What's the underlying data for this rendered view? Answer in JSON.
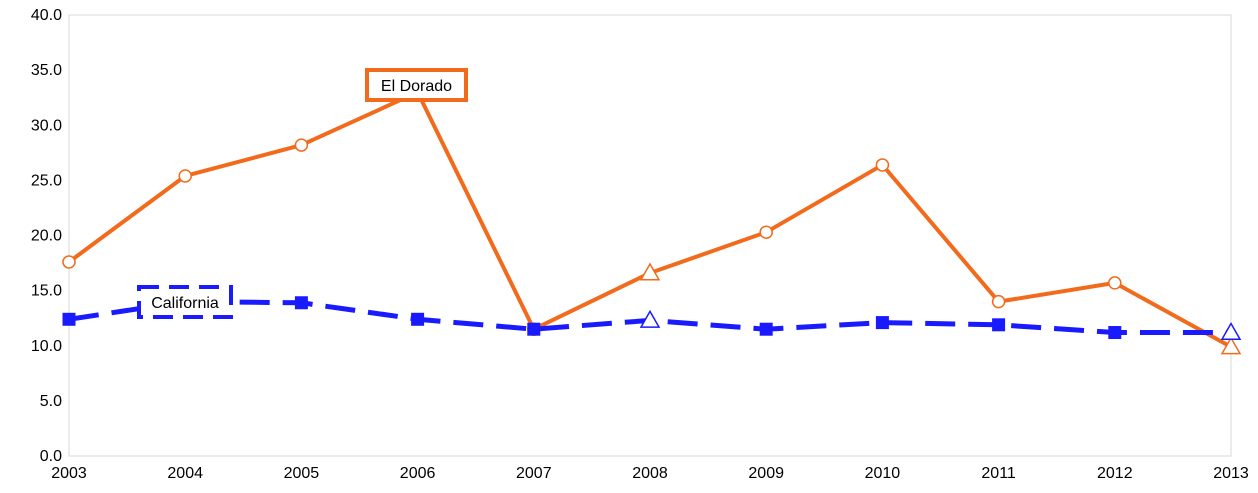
{
  "chart_data": {
    "type": "line",
    "title": "",
    "xlabel": "",
    "ylabel": "",
    "x": [
      "2003",
      "2004",
      "2005",
      "2006",
      "2007",
      "2008",
      "2009",
      "2010",
      "2011",
      "2012",
      "2013"
    ],
    "ylim": [
      0,
      40
    ],
    "y_ticks": [
      "0.0",
      "5.0",
      "10.0",
      "15.0",
      "20.0",
      "25.0",
      "30.0",
      "35.0",
      "40.0"
    ],
    "grid": false,
    "legend": "none",
    "series": [
      {
        "name": "El Dorado",
        "color": "#f26b1d",
        "line_style": "solid",
        "marker": "circle-open",
        "values": [
          17.6,
          25.4,
          28.2,
          33.0,
          11.5,
          16.6,
          20.3,
          26.4,
          14.0,
          15.7,
          9.9
        ],
        "triangle_marker_indices": [
          5,
          10
        ]
      },
      {
        "name": "California",
        "color": "#1a1aff",
        "line_style": "dashed",
        "marker": "square-filled",
        "values": [
          12.4,
          14.0,
          13.9,
          12.4,
          11.5,
          12.3,
          11.5,
          12.1,
          11.9,
          11.2,
          11.2
        ],
        "triangle_marker_indices": [
          5,
          10
        ]
      }
    ]
  }
}
